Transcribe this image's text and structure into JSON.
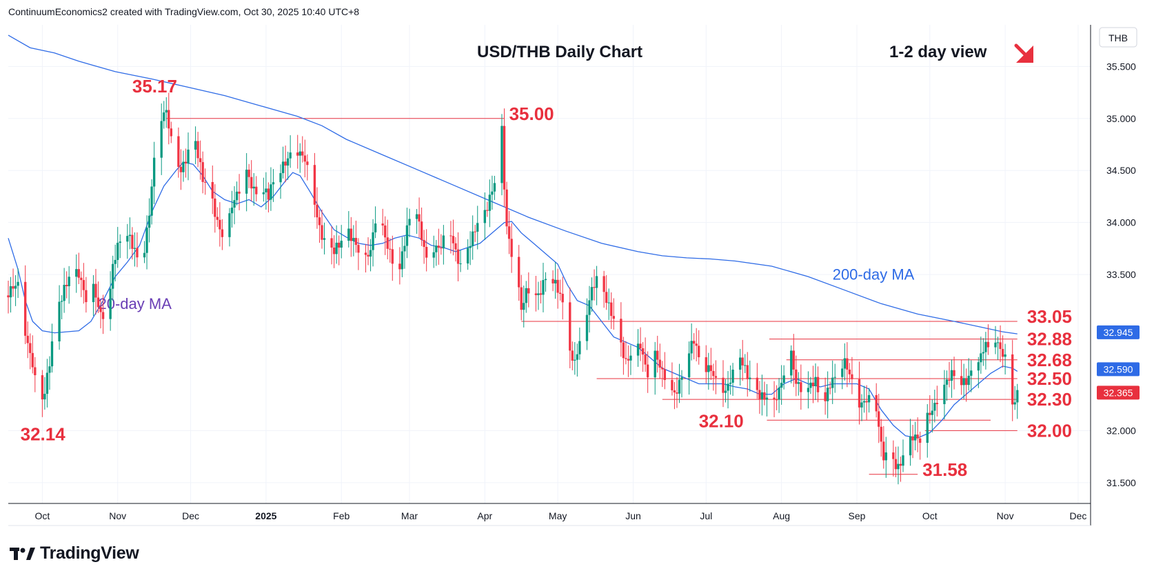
{
  "header": {
    "attribution": "ContinuumEconomics2 created with TradingView.com, Oct 30, 2025 10:40 UTC+8"
  },
  "footer": {
    "brand": "TradingView"
  },
  "chart_data": {
    "type": "candlestick",
    "title": "USD/THB Daily Chart",
    "view_label": "1-2 day view",
    "view_direction_icon": "arrow-down-right-icon",
    "currency_label": "THB",
    "ylim": [
      31.3,
      35.9
    ],
    "y_ticks": [
      "35.500",
      "35.000",
      "34.500",
      "34.000",
      "33.500",
      "32.000",
      "31.500"
    ],
    "x_ticks": [
      {
        "label": "Oct",
        "day": 0
      },
      {
        "label": "Nov",
        "day": 31
      },
      {
        "label": "Dec",
        "day": 61
      },
      {
        "label": "2025",
        "day": 92,
        "bold": true
      },
      {
        "label": "Feb",
        "day": 123
      },
      {
        "label": "Mar",
        "day": 151
      },
      {
        "label": "Apr",
        "day": 182
      },
      {
        "label": "May",
        "day": 212
      },
      {
        "label": "Jun",
        "day": 243
      },
      {
        "label": "Jul",
        "day": 273
      },
      {
        "label": "Aug",
        "day": 304
      },
      {
        "label": "Sep",
        "day": 335
      },
      {
        "label": "Oct",
        "day": 365
      },
      {
        "label": "Nov",
        "day": 396
      },
      {
        "label": "Dec",
        "day": 426
      }
    ],
    "candle_key_points": [
      [
        -14,
        33.3
      ],
      [
        -10,
        33.35
      ],
      [
        -7,
        32.95
      ],
      [
        -4,
        32.7
      ],
      [
        -2,
        32.4
      ],
      [
        0,
        32.3
      ],
      [
        1,
        32.35
      ],
      [
        3,
        32.6
      ],
      [
        6,
        33.1
      ],
      [
        9,
        33.4
      ],
      [
        12,
        33.6
      ],
      [
        15,
        33.5
      ],
      [
        18,
        33.2
      ],
      [
        21,
        33.35
      ],
      [
        24,
        33.15
      ],
      [
        27,
        33.2
      ],
      [
        29,
        33.6
      ],
      [
        32,
        33.8
      ],
      [
        35,
        33.85
      ],
      [
        38,
        33.75
      ],
      [
        41,
        33.65
      ],
      [
        44,
        34.1
      ],
      [
        47,
        34.8
      ],
      [
        49,
        34.95
      ],
      [
        51,
        35.05
      ],
      [
        54,
        34.7
      ],
      [
        57,
        34.55
      ],
      [
        60,
        34.65
      ],
      [
        63,
        34.7
      ],
      [
        66,
        34.4
      ],
      [
        69,
        34.35
      ],
      [
        72,
        34.05
      ],
      [
        75,
        33.8
      ],
      [
        78,
        34.1
      ],
      [
        81,
        34.3
      ],
      [
        84,
        34.55
      ],
      [
        87,
        34.35
      ],
      [
        90,
        34.3
      ],
      [
        93,
        34.2
      ],
      [
        96,
        34.45
      ],
      [
        99,
        34.6
      ],
      [
        102,
        34.7
      ],
      [
        105,
        34.65
      ],
      [
        108,
        34.55
      ],
      [
        111,
        34.3
      ],
      [
        114,
        34.0
      ],
      [
        117,
        33.8
      ],
      [
        120,
        33.7
      ],
      [
        123,
        33.75
      ],
      [
        126,
        33.9
      ],
      [
        129,
        33.85
      ],
      [
        132,
        33.65
      ],
      [
        135,
        33.7
      ],
      [
        138,
        34.1
      ],
      [
        141,
        33.85
      ],
      [
        144,
        33.7
      ],
      [
        147,
        33.6
      ],
      [
        150,
        33.9
      ],
      [
        153,
        34.2
      ],
      [
        155,
        33.95
      ],
      [
        158,
        33.7
      ],
      [
        161,
        33.8
      ],
      [
        164,
        33.75
      ],
      [
        167,
        33.9
      ],
      [
        170,
        33.7
      ],
      [
        172,
        33.6
      ],
      [
        175,
        33.8
      ],
      [
        178,
        33.95
      ],
      [
        181,
        33.95
      ],
      [
        183,
        34.1
      ],
      [
        185,
        34.3
      ],
      [
        187,
        34.5
      ],
      [
        188,
        34.9
      ],
      [
        189,
        34.95
      ],
      [
        190,
        34.4
      ],
      [
        191,
        34.0
      ],
      [
        193,
        33.7
      ],
      [
        195,
        33.5
      ],
      [
        197,
        33.1
      ],
      [
        199,
        33.3
      ],
      [
        201,
        33.4
      ],
      [
        204,
        33.35
      ],
      [
        207,
        33.5
      ],
      [
        210,
        33.4
      ],
      [
        212,
        33.3
      ],
      [
        214,
        33.2
      ],
      [
        216,
        33.0
      ],
      [
        218,
        32.7
      ],
      [
        220,
        32.8
      ],
      [
        223,
        33.0
      ],
      [
        226,
        33.3
      ],
      [
        228,
        33.4
      ],
      [
        231,
        33.35
      ],
      [
        234,
        33.2
      ],
      [
        236,
        33.0
      ],
      [
        238,
        32.8
      ],
      [
        240,
        32.6
      ],
      [
        243,
        32.7
      ],
      [
        246,
        32.85
      ],
      [
        249,
        32.6
      ],
      [
        252,
        32.75
      ],
      [
        255,
        32.5
      ],
      [
        258,
        32.4
      ],
      [
        260,
        32.35
      ],
      [
        262,
        32.5
      ],
      [
        264,
        32.7
      ],
      [
        266,
        32.8
      ],
      [
        268,
        32.85
      ],
      [
        270,
        32.65
      ],
      [
        272,
        32.55
      ],
      [
        275,
        32.6
      ],
      [
        278,
        32.5
      ],
      [
        281,
        32.4
      ],
      [
        284,
        32.5
      ],
      [
        287,
        32.65
      ],
      [
        290,
        32.55
      ],
      [
        293,
        32.45
      ],
      [
        296,
        32.35
      ],
      [
        299,
        32.25
      ],
      [
        301,
        32.2
      ],
      [
        304,
        32.45
      ],
      [
        306,
        32.7
      ],
      [
        308,
        32.8
      ],
      [
        310,
        32.5
      ],
      [
        312,
        32.4
      ],
      [
        315,
        32.35
      ],
      [
        318,
        32.45
      ],
      [
        321,
        32.3
      ],
      [
        324,
        32.5
      ],
      [
        327,
        32.55
      ],
      [
        330,
        32.6
      ],
      [
        333,
        32.45
      ],
      [
        336,
        32.3
      ],
      [
        339,
        32.35
      ],
      [
        342,
        32.3
      ],
      [
        344,
        32.0
      ],
      [
        345,
        31.8
      ],
      [
        346,
        31.7
      ],
      [
        349,
        31.75
      ],
      [
        352,
        31.7
      ],
      [
        355,
        31.85
      ],
      [
        358,
        31.9
      ],
      [
        361,
        31.85
      ],
      [
        363,
        32.1
      ],
      [
        366,
        32.25
      ],
      [
        369,
        32.4
      ],
      [
        372,
        32.45
      ],
      [
        375,
        32.5
      ],
      [
        378,
        32.45
      ],
      [
        381,
        32.55
      ],
      [
        383,
        32.75
      ],
      [
        386,
        32.7
      ],
      [
        388,
        32.8
      ],
      [
        390,
        32.65
      ],
      [
        392,
        32.85
      ],
      [
        394,
        32.8
      ],
      [
        396,
        32.75
      ],
      [
        398,
        32.6
      ],
      [
        399,
        32.3
      ],
      [
        400,
        32.3
      ],
      [
        401,
        32.35
      ]
    ],
    "moving_averages": [
      {
        "name": "20-day MA",
        "color": "#2e6be6",
        "label_color": "#6a3fb5",
        "points": [
          [
            -14,
            33.85
          ],
          [
            -10,
            33.55
          ],
          [
            -7,
            33.25
          ],
          [
            -4,
            33.05
          ],
          [
            0,
            32.96
          ],
          [
            5,
            32.94
          ],
          [
            10,
            32.95
          ],
          [
            15,
            32.96
          ],
          [
            20,
            33.05
          ],
          [
            25,
            33.25
          ],
          [
            30,
            33.48
          ],
          [
            35,
            33.62
          ],
          [
            40,
            33.78
          ],
          [
            45,
            34.1
          ],
          [
            50,
            34.35
          ],
          [
            55,
            34.5
          ],
          [
            58,
            34.58
          ],
          [
            62,
            34.56
          ],
          [
            66,
            34.45
          ],
          [
            70,
            34.3
          ],
          [
            75,
            34.22
          ],
          [
            80,
            34.18
          ],
          [
            85,
            34.22
          ],
          [
            90,
            34.15
          ],
          [
            95,
            34.25
          ],
          [
            100,
            34.4
          ],
          [
            103,
            34.48
          ],
          [
            106,
            34.45
          ],
          [
            110,
            34.3
          ],
          [
            115,
            34.1
          ],
          [
            120,
            33.93
          ],
          [
            125,
            33.86
          ],
          [
            130,
            33.8
          ],
          [
            135,
            33.78
          ],
          [
            140,
            33.8
          ],
          [
            145,
            33.85
          ],
          [
            150,
            33.88
          ],
          [
            155,
            33.85
          ],
          [
            160,
            33.78
          ],
          [
            165,
            33.76
          ],
          [
            170,
            33.72
          ],
          [
            175,
            33.76
          ],
          [
            180,
            33.8
          ],
          [
            185,
            33.9
          ],
          [
            190,
            34.0
          ],
          [
            193,
            34.01
          ],
          [
            197,
            33.9
          ],
          [
            202,
            33.8
          ],
          [
            207,
            33.7
          ],
          [
            212,
            33.6
          ],
          [
            216,
            33.4
          ],
          [
            220,
            33.25
          ],
          [
            225,
            33.2
          ],
          [
            230,
            33.05
          ],
          [
            235,
            32.9
          ],
          [
            240,
            32.85
          ],
          [
            245,
            32.8
          ],
          [
            250,
            32.7
          ],
          [
            255,
            32.6
          ],
          [
            260,
            32.55
          ],
          [
            265,
            32.5
          ],
          [
            270,
            32.45
          ],
          [
            275,
            32.45
          ],
          [
            280,
            32.45
          ],
          [
            285,
            32.42
          ],
          [
            290,
            32.4
          ],
          [
            295,
            32.35
          ],
          [
            300,
            32.35
          ],
          [
            305,
            32.45
          ],
          [
            310,
            32.5
          ],
          [
            315,
            32.45
          ],
          [
            320,
            32.42
          ],
          [
            325,
            32.45
          ],
          [
            330,
            32.45
          ],
          [
            335,
            32.45
          ],
          [
            340,
            32.4
          ],
          [
            345,
            32.2
          ],
          [
            350,
            32.05
          ],
          [
            355,
            31.95
          ],
          [
            360,
            31.93
          ],
          [
            365,
            31.98
          ],
          [
            370,
            32.1
          ],
          [
            375,
            32.25
          ],
          [
            380,
            32.35
          ],
          [
            385,
            32.45
          ],
          [
            390,
            32.55
          ],
          [
            395,
            32.62
          ],
          [
            399,
            32.6
          ],
          [
            401,
            32.57
          ]
        ]
      },
      {
        "name": "200-day MA",
        "color": "#2e6be6",
        "label_color": "#2e6be6",
        "points": [
          [
            -14,
            35.8
          ],
          [
            -5,
            35.68
          ],
          [
            5,
            35.63
          ],
          [
            15,
            35.55
          ],
          [
            30,
            35.45
          ],
          [
            45,
            35.38
          ],
          [
            60,
            35.3
          ],
          [
            75,
            35.22
          ],
          [
            90,
            35.12
          ],
          [
            105,
            35.02
          ],
          [
            115,
            34.93
          ],
          [
            125,
            34.8
          ],
          [
            140,
            34.65
          ],
          [
            155,
            34.5
          ],
          [
            170,
            34.35
          ],
          [
            185,
            34.2
          ],
          [
            200,
            34.05
          ],
          [
            215,
            33.92
          ],
          [
            230,
            33.8
          ],
          [
            245,
            33.72
          ],
          [
            255,
            33.68
          ],
          [
            265,
            33.66
          ],
          [
            275,
            33.65
          ],
          [
            285,
            33.63
          ],
          [
            300,
            33.58
          ],
          [
            315,
            33.48
          ],
          [
            330,
            33.35
          ],
          [
            345,
            33.22
          ],
          [
            360,
            33.12
          ],
          [
            375,
            33.05
          ],
          [
            385,
            33.0
          ],
          [
            395,
            32.95
          ],
          [
            401,
            32.93
          ]
        ]
      }
    ],
    "price_tags": [
      {
        "value": 32.945,
        "label": "32.945",
        "color": "#2e6be6",
        "text_color": "#ffffff"
      },
      {
        "value": 32.59,
        "label": "32.590",
        "color": "#2e6be6",
        "text_color": "#ffffff"
      },
      {
        "value": 32.365,
        "label": "32.365",
        "color": "#e8303e",
        "text_color": "#ffffff"
      }
    ],
    "annotations": [
      {
        "label": "35.17",
        "value": 35.17,
        "label_day": 37,
        "line": false
      },
      {
        "label": "35.00",
        "value": 35.0,
        "from_day": 51,
        "to_day": 190,
        "label_day": 192
      },
      {
        "label": "33.05",
        "value": 33.05,
        "from_day": 197,
        "to_day": 401,
        "label_day": 405
      },
      {
        "label": "32.88",
        "value": 32.88,
        "from_day": 299,
        "to_day": 401,
        "label_day": 405
      },
      {
        "label": "32.68",
        "value": 32.68,
        "from_day": 306,
        "to_day": 401,
        "label_day": 405
      },
      {
        "label": "32.50",
        "value": 32.5,
        "from_day": 228,
        "to_day": 401,
        "label_day": 405
      },
      {
        "label": "32.30",
        "value": 32.3,
        "from_day": 255,
        "to_day": 401,
        "label_day": 405
      },
      {
        "label": "32.10",
        "value": 32.1,
        "from_day": 298,
        "to_day": 390,
        "label_day": 270
      },
      {
        "label": "32.00",
        "value": 32.0,
        "from_day": 363,
        "to_day": 401,
        "label_day": 405
      },
      {
        "label": "31.58",
        "value": 31.58,
        "from_day": 340,
        "to_day": 360,
        "label_day": 362
      },
      {
        "label": "32.14",
        "value": 32.14,
        "label_day": -9,
        "line": false
      }
    ],
    "colors": {
      "up": "#089981",
      "down": "#f23645",
      "annotation": "#e8303e",
      "grid": "#f0f3fa"
    }
  }
}
